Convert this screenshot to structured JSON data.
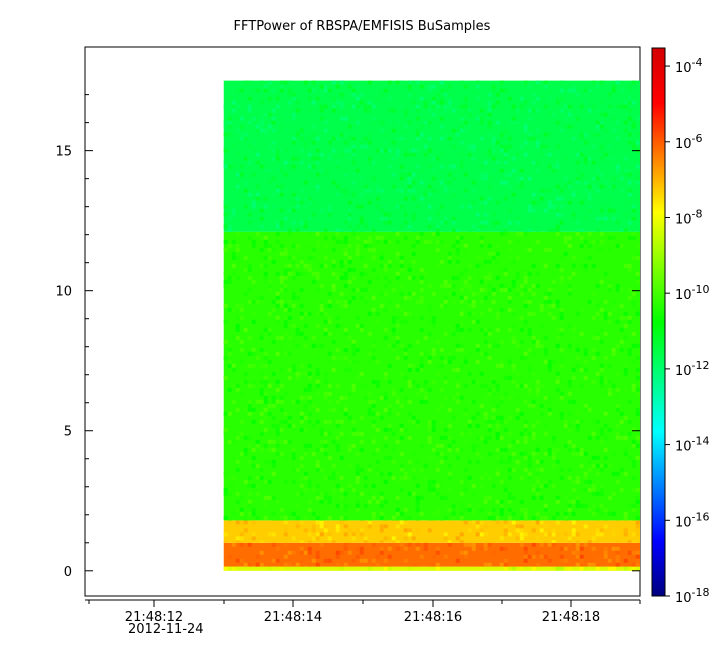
{
  "chart_data": {
    "type": "heatmap",
    "title": "FFTPower of RBSPA/EMFISIS  BuSamples",
    "xlabel": "",
    "ylabel": "",
    "x_ticks": [
      "21:48:12",
      "21:48:14",
      "21:48:16",
      "21:48:18"
    ],
    "x_sublabel": "2012-11-24",
    "x_range_seconds": [
      21.5,
      29.5
    ],
    "x_data_extent_seconds": [
      23.5,
      29.5
    ],
    "y_ticks": [
      0,
      5,
      10,
      15
    ],
    "ylim": [
      -0.9,
      18.7
    ],
    "y_data_extent": [
      0,
      17.5
    ],
    "colorbar": {
      "scale": "log",
      "range": [
        "1e-18",
        "3e-4"
      ],
      "tick_labels": [
        {
          "base": "10",
          "exp": "-4"
        },
        {
          "base": "10",
          "exp": "-6"
        },
        {
          "base": "10",
          "exp": "-8"
        },
        {
          "base": "10",
          "exp": "-10"
        },
        {
          "base": "10",
          "exp": "-12"
        },
        {
          "base": "10",
          "exp": "-14"
        },
        {
          "base": "10",
          "exp": "-16"
        },
        {
          "base": "10",
          "exp": "-18"
        }
      ],
      "colors": [
        "#00007f",
        "#0000ff",
        "#0080ff",
        "#00ffff",
        "#00ff7f",
        "#00ff00",
        "#7fff00",
        "#ffff00",
        "#ff8000",
        "#ff0000",
        "#d40000"
      ]
    },
    "bands": [
      {
        "y_from": 0.0,
        "y_to": 0.15,
        "log_power": -8.3
      },
      {
        "y_from": 0.15,
        "y_to": 1.0,
        "log_power": -6.2
      },
      {
        "y_from": 1.0,
        "y_to": 1.8,
        "log_power": -7.3
      },
      {
        "y_from": 1.8,
        "y_to": 12.1,
        "log_power": -10.3
      },
      {
        "y_from": 12.1,
        "y_to": 17.5,
        "log_power": -11.6
      }
    ]
  }
}
